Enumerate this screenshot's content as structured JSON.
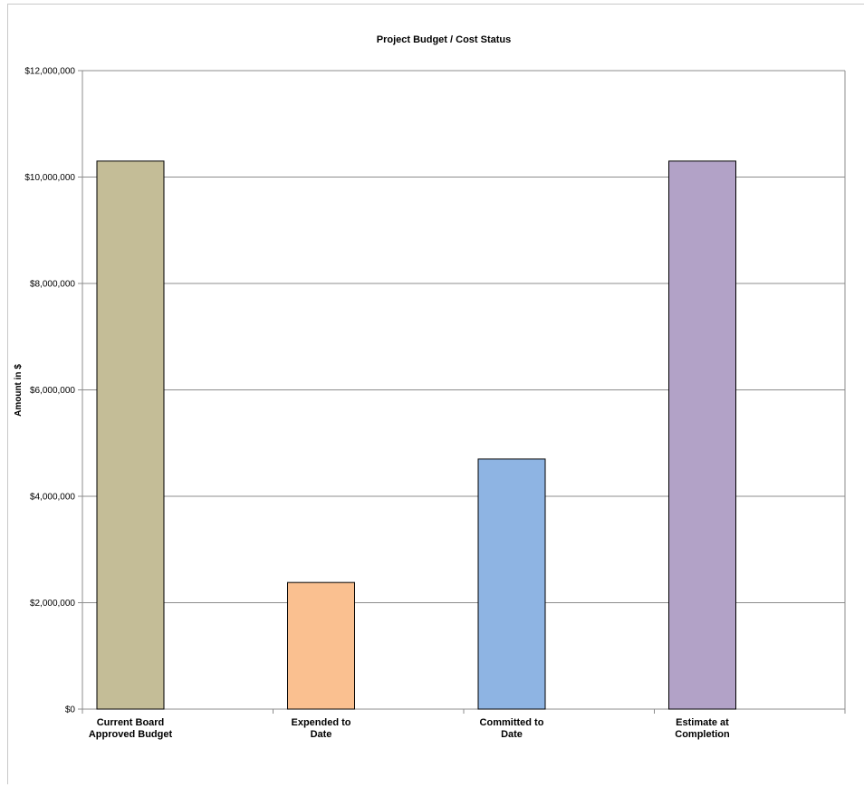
{
  "chart_data": {
    "type": "bar",
    "title": "Project Budget / Cost Status",
    "xlabel": "",
    "ylabel": "Amount in $",
    "ylim": [
      0,
      12000000
    ],
    "y_ticks": [
      0,
      2000000,
      4000000,
      6000000,
      8000000,
      10000000,
      12000000
    ],
    "y_tick_labels": [
      "$0",
      "$2,000,000",
      "$4,000,000",
      "$6,000,000",
      "$8,000,000",
      "$10,000,000",
      "$12,000,000"
    ],
    "categories": [
      [
        "Current Board",
        "Approved Budget"
      ],
      [
        "Expended  to",
        "Date"
      ],
      [
        "Committed to",
        "Date"
      ],
      [
        "Estimate at",
        "Completion"
      ]
    ],
    "values": [
      10300000,
      2380000,
      4700000,
      10300000
    ],
    "bar_colors": [
      "#c4bd97",
      "#fac090",
      "#8eb4e3",
      "#b2a2c7"
    ],
    "grid": true,
    "legend": "none"
  }
}
